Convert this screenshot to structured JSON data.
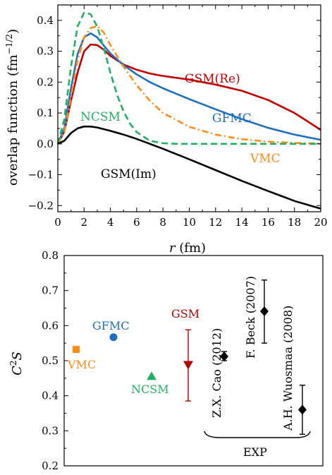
{
  "chart_data": [
    {
      "type": "line",
      "xlabel": "r (fm)",
      "ylabel": "overlap function (fm⁻¹ᐟ²)",
      "xlabel_parts": {
        "var": "r",
        "unit": " (fm)"
      },
      "ylabel_parts": {
        "main": "overlap function (fm",
        "sup": "−1/2",
        "close": ")"
      },
      "xlim": [
        0,
        20
      ],
      "ylim": [
        -0.22,
        0.45
      ],
      "xticks": [
        0,
        2,
        4,
        6,
        8,
        10,
        12,
        14,
        16,
        18,
        20
      ],
      "yticks": [
        -0.2,
        -0.1,
        0.0,
        0.1,
        0.2,
        0.3,
        0.4
      ],
      "ytick_labels": [
        "−0.2",
        "−0.1",
        "0.0",
        "0.1",
        "0.2",
        "0.3",
        "0.4"
      ],
      "grid": false,
      "series": [
        {
          "name": "GSM(Re)",
          "color": "#c00000",
          "style": "solid",
          "x": [
            0,
            0.5,
            1.0,
            1.5,
            2.0,
            2.5,
            3.0,
            3.5,
            4.0,
            5.0,
            6.0,
            7.0,
            8.0,
            10.0,
            12.0,
            14.0,
            16.0,
            18.0,
            19.0,
            20.0
          ],
          "y": [
            0.0,
            0.04,
            0.14,
            0.23,
            0.3,
            0.322,
            0.32,
            0.305,
            0.285,
            0.257,
            0.24,
            0.228,
            0.22,
            0.208,
            0.192,
            0.172,
            0.142,
            0.1,
            0.073,
            0.045
          ]
        },
        {
          "name": "GFMC",
          "color": "#1f6fbf",
          "style": "solid",
          "x": [
            0,
            0.5,
            1.0,
            1.5,
            2.0,
            2.5,
            3.0,
            3.5,
            4.0,
            5.0,
            6.0,
            7.0,
            8.0,
            10.0,
            12.0,
            14.0,
            16.0,
            18.0,
            20.0
          ],
          "y": [
            0.0,
            0.05,
            0.18,
            0.29,
            0.345,
            0.358,
            0.345,
            0.318,
            0.293,
            0.255,
            0.225,
            0.2,
            0.18,
            0.145,
            0.112,
            0.08,
            0.052,
            0.03,
            0.013
          ]
        },
        {
          "name": "VMC",
          "color": "#ff8c1a",
          "style": "dashdot",
          "x": [
            0,
            0.5,
            1.0,
            1.5,
            2.0,
            2.5,
            3.0,
            3.5,
            4.0,
            5.0,
            6.0,
            7.0,
            8.0,
            10.0,
            12.0,
            14.0,
            16.0,
            18.0,
            20.0
          ],
          "y": [
            0.0,
            0.04,
            0.15,
            0.27,
            0.345,
            0.375,
            0.382,
            0.36,
            0.32,
            0.25,
            0.19,
            0.14,
            0.1,
            0.055,
            0.03,
            0.015,
            0.007,
            0.003,
            0.001
          ]
        },
        {
          "name": "NCSM",
          "color": "#22b060",
          "style": "dashed",
          "x": [
            0,
            0.5,
            1.0,
            1.5,
            2.0,
            2.5,
            3.0,
            3.5,
            4.0,
            4.5,
            5.0,
            5.5,
            6.0,
            7.0,
            8.0,
            9.0,
            10.0,
            12.0,
            14.0,
            16.0,
            20.0
          ],
          "y": [
            0.0,
            0.08,
            0.25,
            0.38,
            0.425,
            0.42,
            0.38,
            0.31,
            0.23,
            0.16,
            0.105,
            0.065,
            0.038,
            0.01,
            0.002,
            0.0,
            0.0,
            0.0,
            0.0,
            0.0,
            0.0
          ]
        },
        {
          "name": "GSM(Im)",
          "color": "#000000",
          "style": "solid",
          "x": [
            0,
            0.5,
            1.0,
            1.5,
            2.0,
            2.5,
            3.0,
            4.0,
            5.0,
            6.0,
            8.0,
            10.0,
            12.0,
            14.0,
            16.0,
            18.0,
            20.0
          ],
          "y": [
            0.0,
            0.01,
            0.035,
            0.05,
            0.056,
            0.056,
            0.053,
            0.042,
            0.03,
            0.016,
            -0.016,
            -0.05,
            -0.085,
            -0.12,
            -0.153,
            -0.185,
            -0.21
          ]
        }
      ]
    },
    {
      "type": "scatter",
      "ylabel": "C²S",
      "ylabel_parts": {
        "base": "C",
        "sup": "2",
        "tail": "S"
      },
      "ylim": [
        0.2,
        0.8
      ],
      "yticks": [
        0.2,
        0.3,
        0.4,
        0.5,
        0.6,
        0.7,
        0.8
      ],
      "ytick_labels": [
        "0.2",
        "0.3",
        "0.4",
        "0.5",
        "0.6",
        "0.7",
        "0.8"
      ],
      "grid": false,
      "points": [
        {
          "label": "VMC",
          "value": 0.532,
          "color": "#ff8c1a",
          "marker": "square"
        },
        {
          "label": "GFMC",
          "value": 0.567,
          "color": "#1f6fbf",
          "marker": "circle"
        },
        {
          "label": "NCSM",
          "value": 0.455,
          "color": "#22b060",
          "marker": "triangle-up"
        },
        {
          "label": "GSM",
          "value": 0.487,
          "err_low": 0.385,
          "err_high": 0.588,
          "color": "#b00000",
          "marker": "triangle-down"
        },
        {
          "label": "Z.X. Cao (2012)",
          "value": 0.512,
          "err_low": 0.5,
          "err_high": 0.526,
          "color": "#000000",
          "marker": "diamond"
        },
        {
          "label": "F. Beck (2007)",
          "value": 0.641,
          "err_low": 0.55,
          "err_high": 0.73,
          "color": "#000000",
          "marker": "diamond"
        },
        {
          "label": "A.H. Wuosmaa (2008)",
          "value": 0.36,
          "err_low": 0.29,
          "err_high": 0.43,
          "color": "#000000",
          "marker": "diamond"
        }
      ],
      "group_label": "EXP"
    }
  ]
}
